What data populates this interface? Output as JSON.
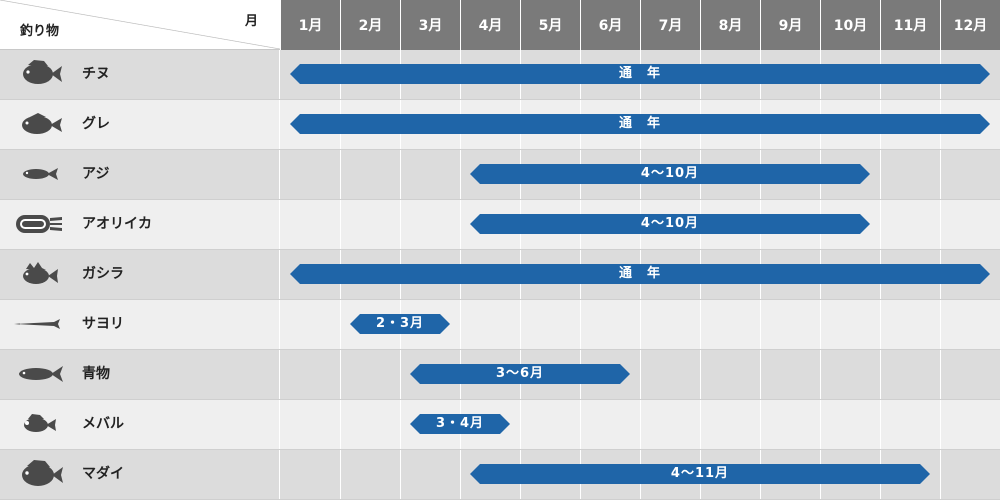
{
  "header": {
    "month_label": "月",
    "item_label": "釣り物",
    "months": [
      "1月",
      "2月",
      "3月",
      "4月",
      "5月",
      "6月",
      "7月",
      "8月",
      "9月",
      "10月",
      "11月",
      "12月"
    ]
  },
  "colors": {
    "header_bg": "#7a7a7a",
    "row_dark": "#dcdcdc",
    "row_light": "#efefef",
    "bar": "#1f65a8",
    "icon": "#4a4a4a"
  },
  "rows": [
    {
      "name": "チヌ",
      "icon": "sea-bream-icon",
      "start": 1,
      "end": 12,
      "label": "通　年"
    },
    {
      "name": "グレ",
      "icon": "blackfish-icon",
      "start": 1,
      "end": 12,
      "label": "通　年"
    },
    {
      "name": "アジ",
      "icon": "horse-mackerel-icon",
      "start": 4,
      "end": 10,
      "label": "4～10月"
    },
    {
      "name": "アオリイカ",
      "icon": "squid-icon",
      "start": 4,
      "end": 10,
      "label": "4～10月"
    },
    {
      "name": "ガシラ",
      "icon": "scorpionfish-icon",
      "start": 1,
      "end": 12,
      "label": "通　年"
    },
    {
      "name": "サヨリ",
      "icon": "halfbeak-icon",
      "start": 2,
      "end": 3,
      "label": "2・3月"
    },
    {
      "name": "青物",
      "icon": "yellowtail-icon",
      "start": 3,
      "end": 6,
      "label": "3～6月"
    },
    {
      "name": "メバル",
      "icon": "rockfish-icon",
      "start": 3,
      "end": 4,
      "label": "3・4月"
    },
    {
      "name": "マダイ",
      "icon": "red-sea-bream-icon",
      "start": 4,
      "end": 11,
      "label": "4～11月"
    }
  ]
}
